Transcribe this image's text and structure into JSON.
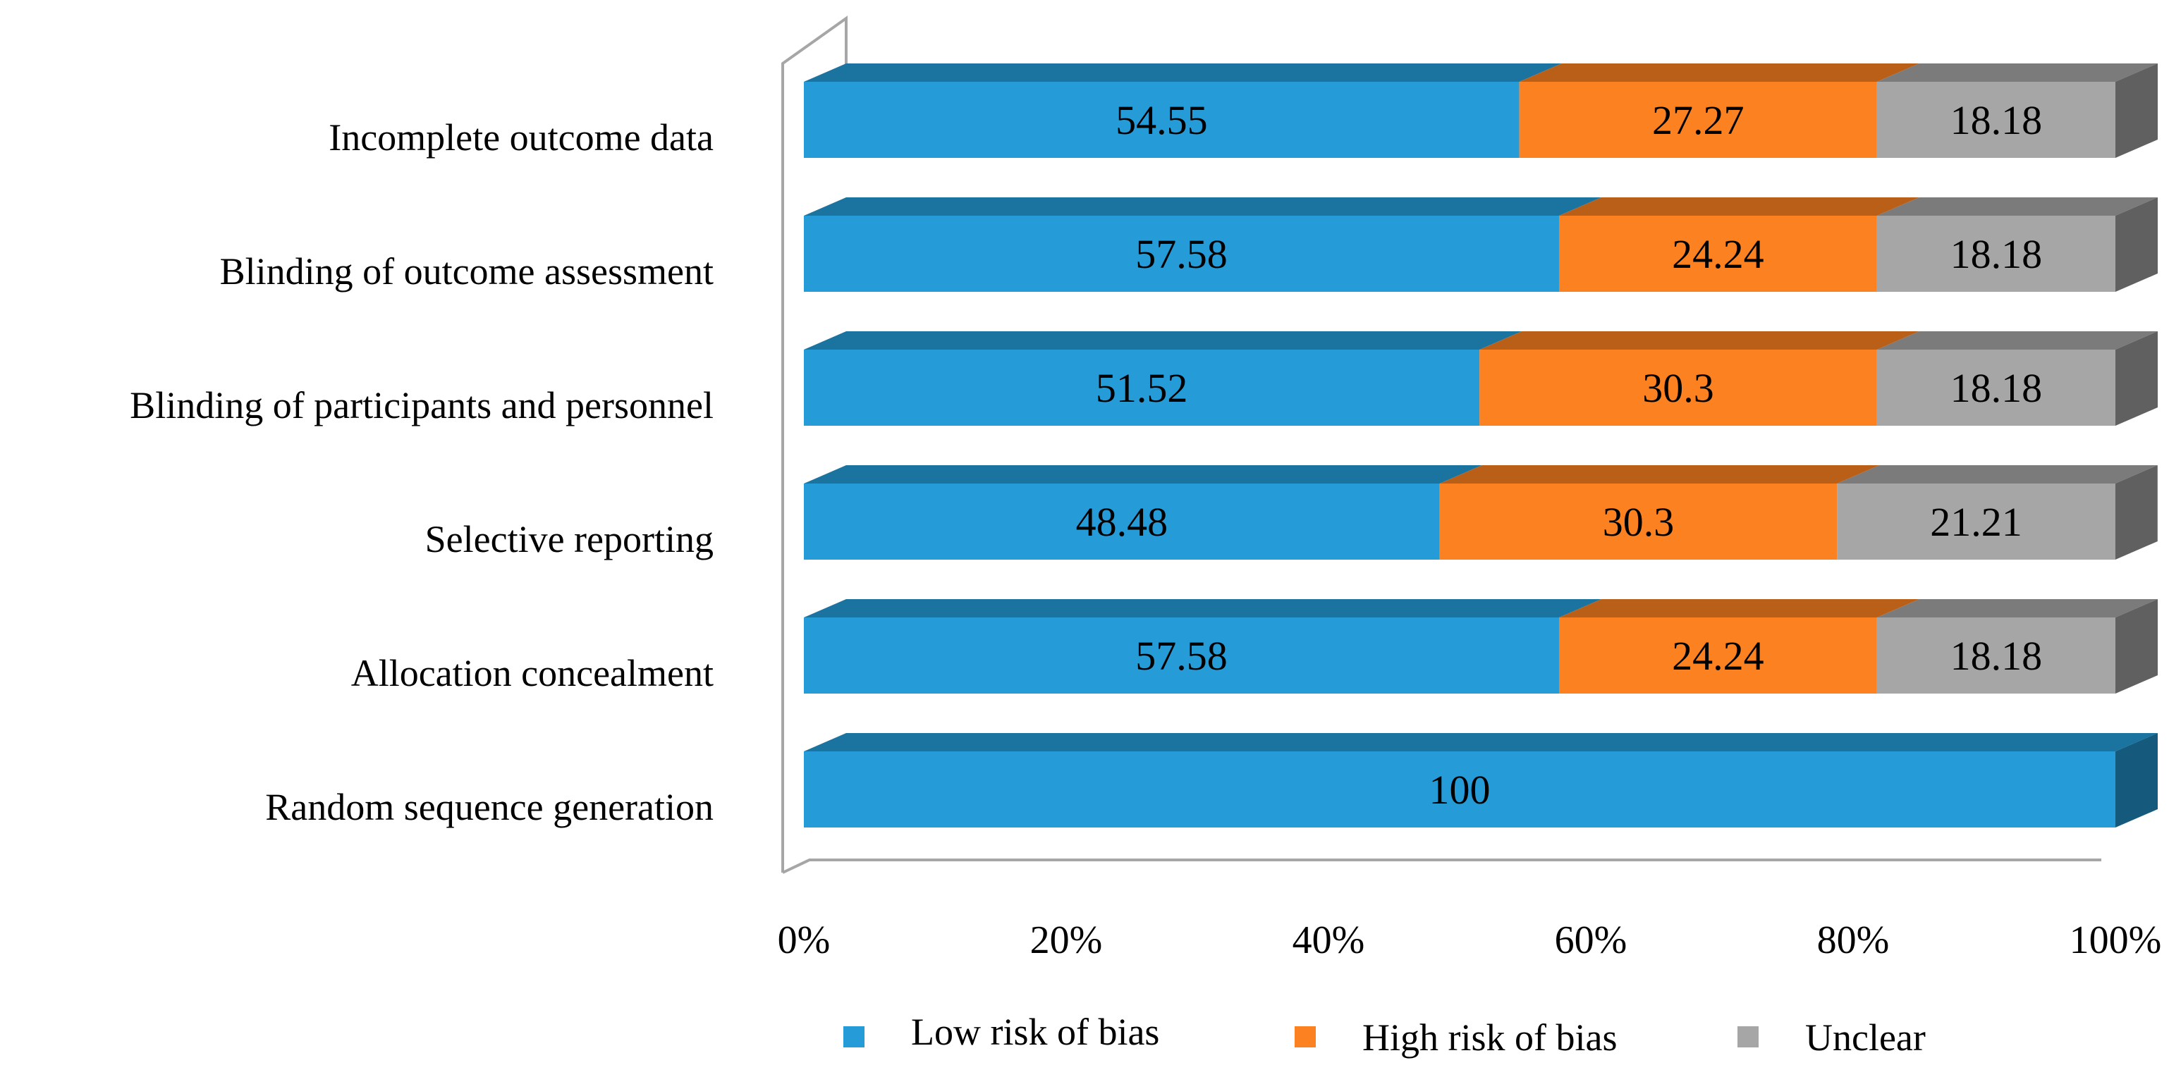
{
  "chart_data": {
    "type": "bar",
    "orientation": "horizontal",
    "stacked": "percent",
    "style": "3d",
    "title": "",
    "xlabel": "",
    "ylabel": "",
    "xlim": [
      0,
      100
    ],
    "x_ticks": [
      "0%",
      "20%",
      "40%",
      "60%",
      "80%",
      "100%"
    ],
    "categories": [
      "Incomplete outcome data",
      "Blinding of outcome assessment",
      "Blinding of participants and personnel",
      "Selective reporting",
      "Allocation concealment",
      "Random sequence generation"
    ],
    "series": [
      {
        "name": "Low risk of bias",
        "color": "#259BD8",
        "values": [
          54.55,
          57.58,
          51.52,
          48.48,
          57.58,
          100
        ],
        "labels": [
          "54.55",
          "57.58",
          "51.52",
          "48.48",
          "57.58",
          "100"
        ]
      },
      {
        "name": "High risk of bias",
        "color": "#FC8121",
        "values": [
          27.27,
          24.24,
          30.3,
          30.3,
          24.24,
          0
        ],
        "labels": [
          "27.27",
          "24.24",
          "30.3",
          "30.3",
          "24.24",
          ""
        ]
      },
      {
        "name": "Unclear",
        "color": "#A6A6A6",
        "values": [
          18.18,
          18.18,
          18.18,
          21.21,
          18.18,
          0
        ],
        "labels": [
          "18.18",
          "18.18",
          "18.18",
          "21.21",
          "18.18",
          ""
        ]
      }
    ],
    "legend": {
      "position": "bottom",
      "entries": [
        "Low risk of bias",
        "High risk of bias",
        "Unclear"
      ]
    },
    "grid": false
  }
}
